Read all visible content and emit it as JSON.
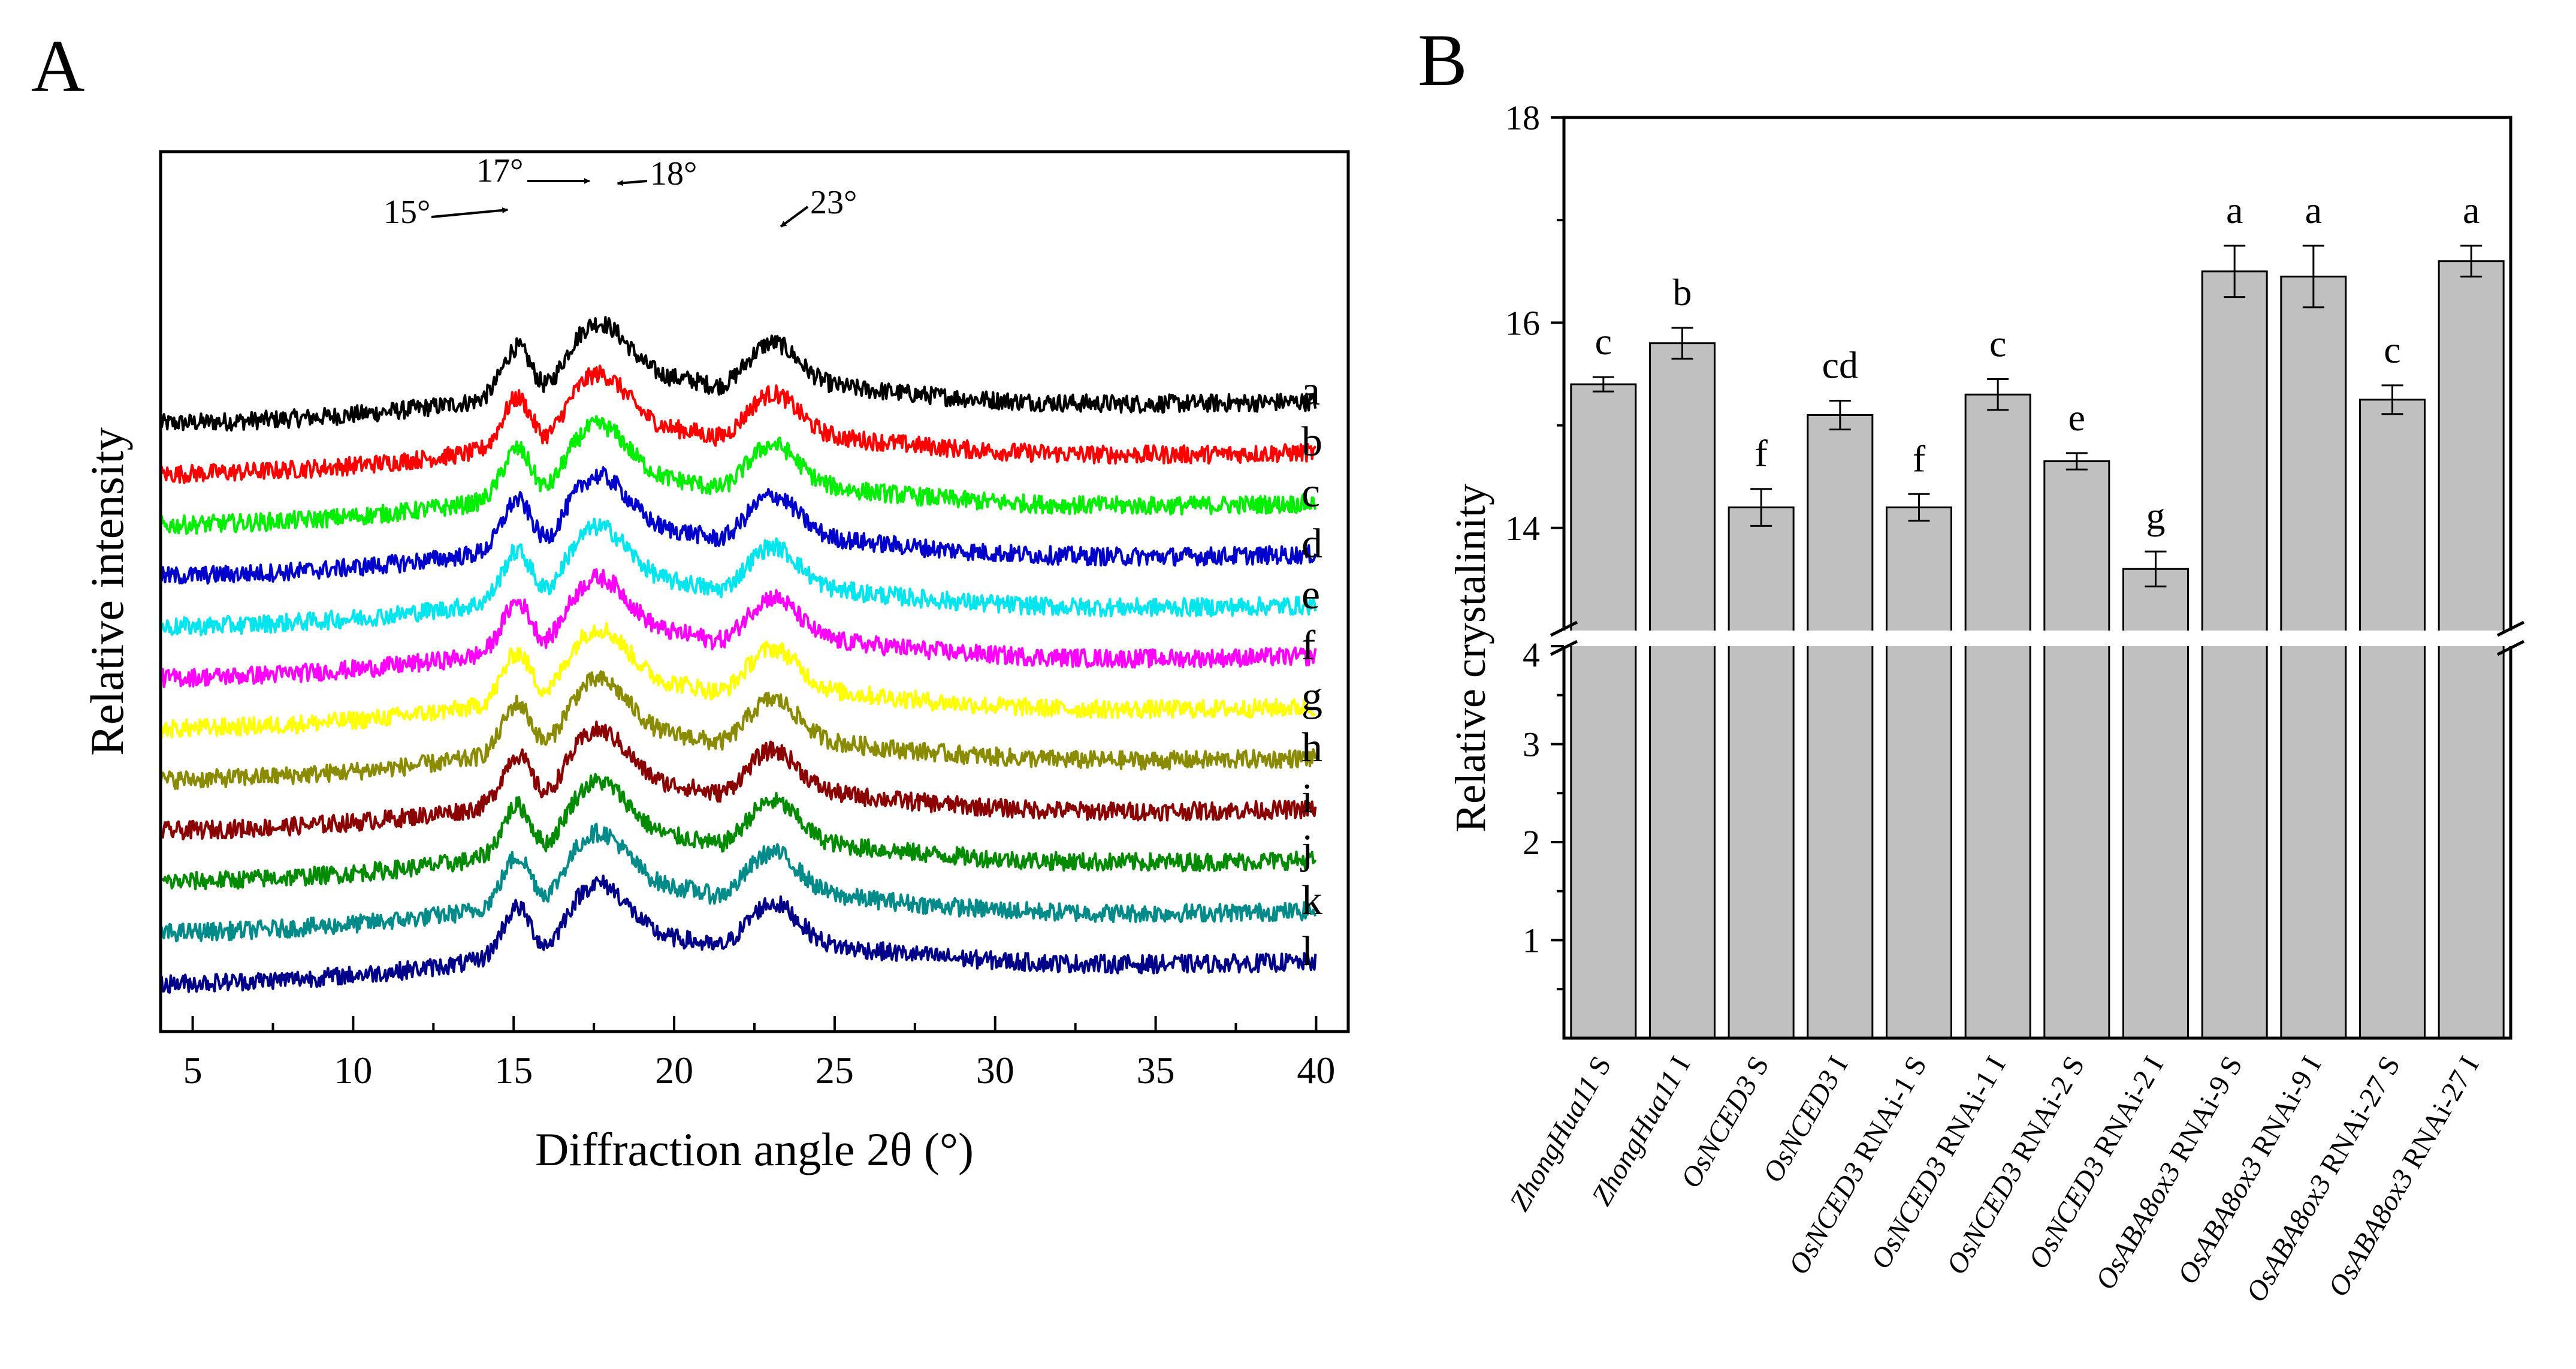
{
  "chart_data": [
    {
      "panel_label": "A",
      "type": "line",
      "title": "",
      "xlabel": "Diffraction angle 2θ (°)",
      "ylabel": "Relative intensity",
      "xlim": [
        4,
        41
      ],
      "xticks": [
        5,
        10,
        15,
        20,
        25,
        30,
        35,
        40
      ],
      "xtick_labels": [
        "5",
        "10",
        "15",
        "20",
        "25",
        "30",
        "35",
        "40"
      ],
      "yticks": [],
      "peak_annotations": [
        {
          "label": "15°",
          "x": 15.1
        },
        {
          "label": "17°",
          "x": 17.3
        },
        {
          "label": "18°",
          "x": 18.0
        },
        {
          "label": "23°",
          "x": 23.1
        }
      ],
      "series": [
        {
          "name": "a",
          "color": "#000000"
        },
        {
          "name": "b",
          "color": "#ff0000"
        },
        {
          "name": "c",
          "color": "#00ee00"
        },
        {
          "name": "d",
          "color": "#0000cc"
        },
        {
          "name": "e",
          "color": "#00e5ee"
        },
        {
          "name": "f",
          "color": "#ff00ff"
        },
        {
          "name": "g",
          "color": "#ffff00"
        },
        {
          "name": "h",
          "color": "#8b8b00"
        },
        {
          "name": "i",
          "color": "#8b0000"
        },
        {
          "name": "j",
          "color": "#008b00"
        },
        {
          "name": "k",
          "color": "#008b8b"
        },
        {
          "name": "l",
          "color": "#00008b"
        }
      ]
    },
    {
      "panel_label": "B",
      "type": "bar",
      "title": "",
      "xlabel": "",
      "ylabel": "Relative crystalinity",
      "y_axis_break": true,
      "ylim_lower": [
        0,
        4
      ],
      "ylim_upper": [
        13,
        18
      ],
      "yticks_lower": [
        1,
        2,
        3,
        4
      ],
      "yticks_upper": [
        14,
        16,
        18
      ],
      "categories": [
        {
          "italic": "ZhongHua11",
          "suffix": " S"
        },
        {
          "italic": "ZhongHua11",
          "suffix": " I"
        },
        {
          "italic": "OsNCED3",
          "suffix": " S"
        },
        {
          "italic": "OsNCED3",
          "suffix": " I"
        },
        {
          "italic": "OsNCED3",
          "suffix": " RNAi-1 S"
        },
        {
          "italic": "OsNCED3",
          "suffix": " RNAi-1 I"
        },
        {
          "italic": "OsNCED3",
          "suffix": " RNAi-2 S"
        },
        {
          "italic": "OsNCED3",
          "suffix": " RNAi-2 I"
        },
        {
          "italic": "OsABA8ox3",
          "suffix": " RNAi-9 S"
        },
        {
          "italic": "OsABA8ox3",
          "suffix": " RNAi-9 I"
        },
        {
          "italic": "OsABA8ox3",
          "suffix": " RNAi-27 S"
        },
        {
          "italic": "OsABA8ox3",
          "suffix": " RNAi-27 I"
        }
      ],
      "values": [
        15.4,
        15.8,
        14.2,
        15.1,
        14.2,
        15.3,
        14.65,
        13.6,
        16.5,
        16.45,
        15.25,
        16.6
      ],
      "errors": [
        0.07,
        0.15,
        0.18,
        0.14,
        0.13,
        0.15,
        0.08,
        0.17,
        0.25,
        0.3,
        0.14,
        0.15
      ],
      "significance": [
        "c",
        "b",
        "f",
        "cd",
        "f",
        "c",
        "e",
        "g",
        "a",
        "a",
        "c",
        "a"
      ],
      "bar_color": "#c0c0c0"
    }
  ]
}
